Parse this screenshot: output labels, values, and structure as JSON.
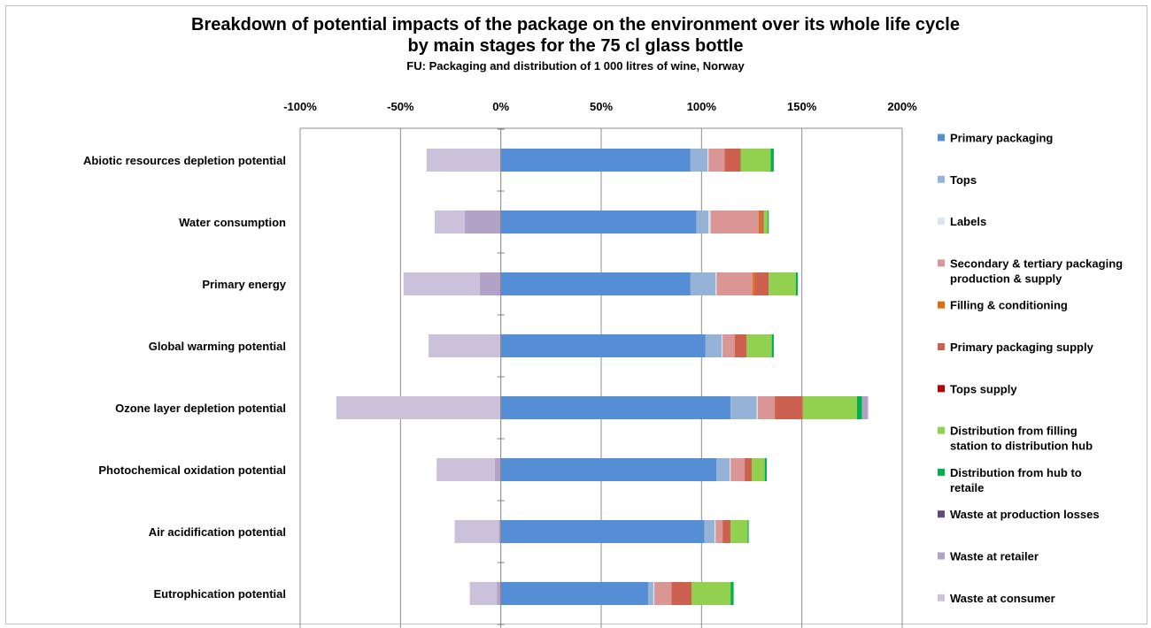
{
  "chart_data": {
    "type": "bar",
    "orientation": "horizontal",
    "stacked": true,
    "title": "Breakdown of potential impacts of the package on the environment over its whole life cycle",
    "title_line2": "by main stages for the 75 cl glass bottle",
    "subtitle": "FU: Packaging and distribution of 1 000 litres of wine, Norway",
    "xlim": [
      -100,
      200
    ],
    "x_ticks": [
      -100,
      -50,
      0,
      50,
      100,
      150,
      200
    ],
    "x_tick_labels": [
      "-100%",
      "-50%",
      "0%",
      "50%",
      "100%",
      "150%",
      "200%"
    ],
    "x_axis_position": "top",
    "grid": true,
    "legend_position": "right",
    "categories": [
      "Abiotic resources depletion potential",
      "Water consumption",
      "Primary energy",
      "Global warming potential",
      "Ozone layer depletion potential",
      "Photochemical oxidation potential",
      "Air acidification potential",
      "Eutrophication potential"
    ],
    "series": [
      {
        "name": "Primary packaging",
        "color": "#558ed5",
        "values": [
          94.5,
          97.5,
          94.5,
          102,
          114.5,
          107.5,
          101.5,
          73.5
        ]
      },
      {
        "name": "Tops",
        "color": "#95b3d7",
        "values": [
          8.5,
          6,
          12.5,
          8,
          13,
          6.5,
          5,
          2.5
        ]
      },
      {
        "name": "Labels",
        "color": "#dbe5f1",
        "values": [
          0.5,
          1,
          0.5,
          0.5,
          0.5,
          0.5,
          0.5,
          0.5
        ]
      },
      {
        "name": "Secondary & tertiary packaging production & supply",
        "color": "#da9694",
        "values": [
          8,
          24,
          18,
          6,
          8.5,
          7,
          3.5,
          8.5
        ]
      },
      {
        "name": "Filling & conditioning",
        "color": "#e46c0a",
        "values": [
          0,
          1,
          1,
          0,
          0,
          0,
          0,
          0
        ]
      },
      {
        "name": "Primary packaging supply",
        "color": "#cd614f",
        "values": [
          8,
          1.5,
          7,
          6,
          14,
          3.5,
          4,
          10
        ]
      },
      {
        "name": "Tops supply",
        "color": "#c00000",
        "values": [
          0,
          0,
          0,
          0,
          0,
          0,
          0,
          0
        ]
      },
      {
        "name": "Distribution from filling station to distribution hub",
        "color": "#92d050",
        "values": [
          15,
          2,
          13.5,
          12.5,
          27,
          6.5,
          8.5,
          19.5
        ]
      },
      {
        "name": "Distribution from hub to retaile",
        "color": "#00b050",
        "values": [
          1.5,
          0.5,
          1,
          1,
          2.5,
          1,
          0.5,
          1.5
        ]
      },
      {
        "name": "Waste at production losses",
        "color": "#604a7b",
        "values": [
          0,
          0,
          0,
          0,
          0,
          0,
          0,
          0
        ]
      },
      {
        "name": "Waste at retailer",
        "color": "#b3a2c7",
        "values": [
          0,
          -18,
          -10.5,
          0,
          3,
          -3,
          -1,
          -2
        ]
      },
      {
        "name": "Waste at consumer",
        "color": "#ccc1da",
        "values": [
          -37,
          -15,
          -38,
          -36,
          -82,
          -29,
          -22,
          -13.5
        ]
      }
    ]
  }
}
